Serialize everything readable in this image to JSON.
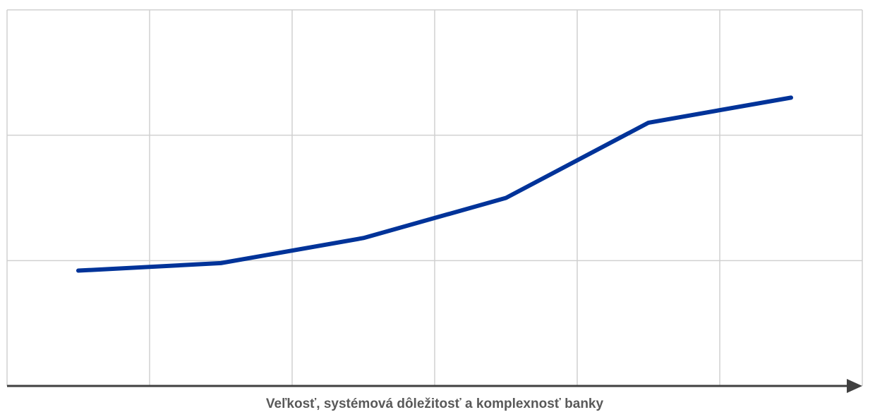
{
  "chart_data": {
    "type": "line",
    "xlabel": "Veľkosť, systémová dôležitosť a komplexnosť banky",
    "ylabel": "",
    "x": [
      1,
      2,
      3,
      4,
      5,
      6
    ],
    "xlim": [
      0.5,
      6.5
    ],
    "ylim": [
      0,
      3
    ],
    "series": [
      {
        "values": [
          0.92,
          0.98,
          1.18,
          1.5,
          2.1,
          2.3
        ]
      }
    ],
    "grid": true,
    "legend": "none",
    "colors": {
      "series": "#003399",
      "grid": "#d0d0d0",
      "axis": "#404040"
    }
  }
}
